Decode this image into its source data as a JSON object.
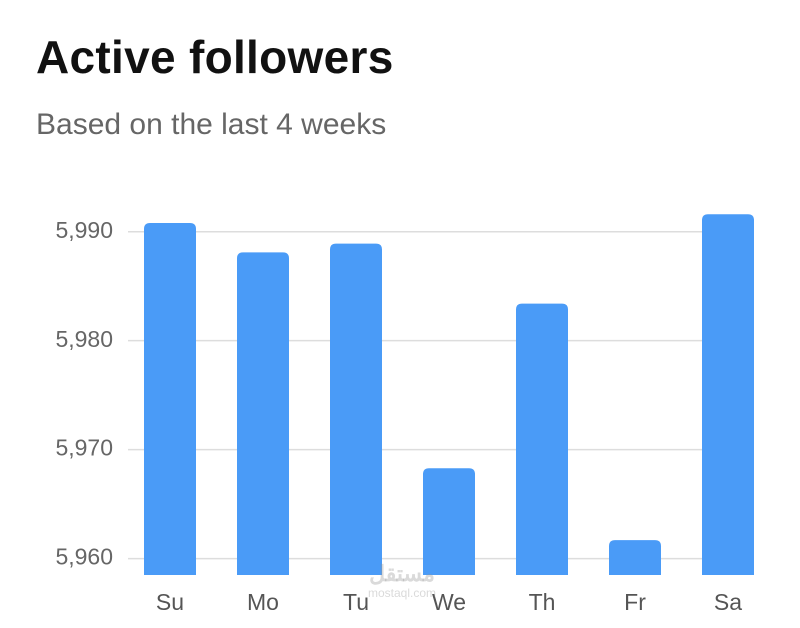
{
  "chart_data": {
    "type": "bar",
    "title": "Active followers",
    "subtitle": "Based on the last 4 weeks",
    "categories": [
      "Su",
      "Mo",
      "Tu",
      "We",
      "Th",
      "Fr",
      "Sa"
    ],
    "values": [
      5990.8,
      5988.1,
      5988.9,
      5968.3,
      5983.4,
      5961.7,
      5991.6
    ],
    "ylim": [
      5958.5,
      5993
    ],
    "yticks": [
      5960,
      5970,
      5980,
      5990
    ],
    "ytick_labels": [
      "5,960",
      "5,970",
      "5,980",
      "5,990"
    ],
    "grid": true,
    "legend": "none",
    "bar_color": "#4a9bf7",
    "grid_color": "#dddddd"
  },
  "watermark": {
    "main": "مستقل",
    "sub": "mostaql.com"
  }
}
